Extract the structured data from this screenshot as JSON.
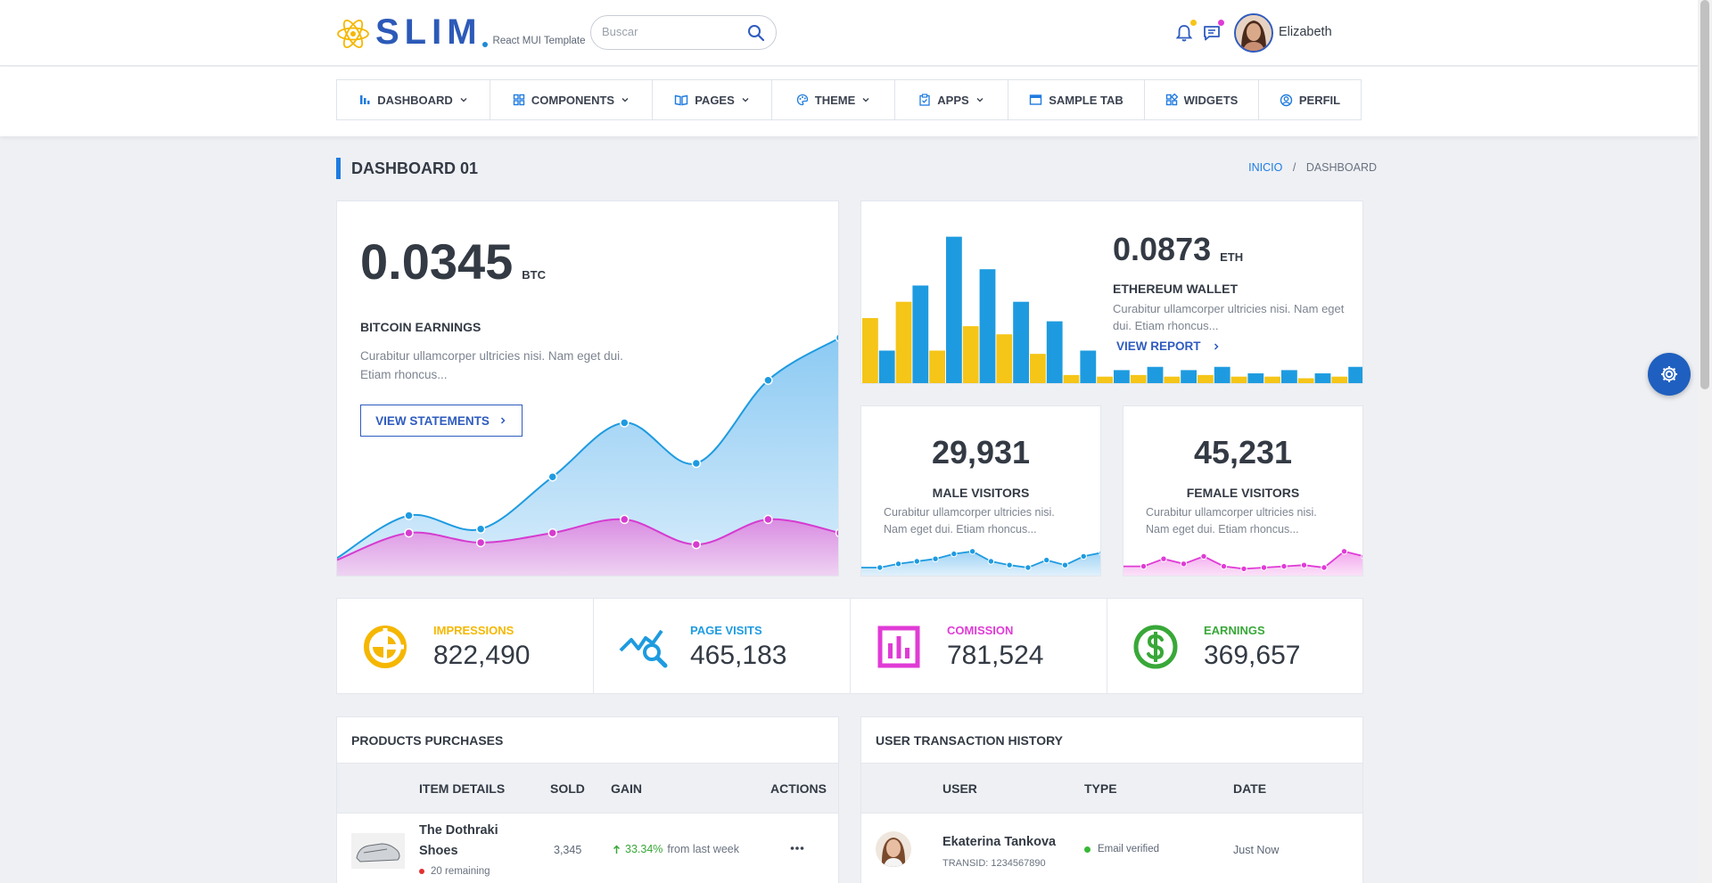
{
  "header": {
    "logo_text": "SLIM",
    "logo_subtitle": "React MUI Template",
    "search": {
      "placeholder": "Buscar"
    },
    "user_name": "Elizabeth",
    "colors": {
      "notif_dot": "#f5c518",
      "msg_dot": "#e03bd6"
    }
  },
  "nav": {
    "items": [
      {
        "label": "DASHBOARD",
        "icon": "bar-chart-icon",
        "dropdown": true
      },
      {
        "label": "COMPONENTS",
        "icon": "grid-icon",
        "dropdown": true
      },
      {
        "label": "PAGES",
        "icon": "book-icon",
        "dropdown": true
      },
      {
        "label": "THEME",
        "icon": "palette-icon",
        "dropdown": true
      },
      {
        "label": "APPS",
        "icon": "clipboard-icon",
        "dropdown": true
      },
      {
        "label": "SAMPLE TAB",
        "icon": "browser-icon",
        "dropdown": false
      },
      {
        "label": "WIDGETS",
        "icon": "widgets-icon",
        "dropdown": false
      },
      {
        "label": "PERFIL",
        "icon": "user-circle-icon",
        "dropdown": false
      }
    ]
  },
  "page": {
    "title": "DASHBOARD 01",
    "breadcrumb": {
      "home": "INICIO",
      "separator": "/",
      "current": "DASHBOARD"
    }
  },
  "bitcoin": {
    "value": "0.0345",
    "unit": "BTC",
    "title": "BITCOIN EARNINGS",
    "desc_line1": "Curabitur ullamcorper ultricies nisi. Nam eget dui.",
    "desc_line2": "Etiam rhoncus...",
    "button": "VIEW STATEMENTS"
  },
  "ethereum": {
    "value": "0.0873",
    "unit": "ETH",
    "title": "ETHEREUM WALLET",
    "desc_line1": "Curabitur ullamcorper ultricies nisi. Nam eget",
    "desc_line2": "dui. Etiam rhoncus...",
    "link": "VIEW REPORT"
  },
  "male": {
    "value": "29,931",
    "title": "MALE VISITORS",
    "desc_line1": "Curabitur ullamcorper ultricies nisi.",
    "desc_line2": "Nam eget dui. Etiam rhoncus..."
  },
  "female": {
    "value": "45,231",
    "title": "FEMALE VISITORS",
    "desc_line1": "Curabitur ullamcorper ultricies nisi.",
    "desc_line2": "Nam eget dui. Etiam rhoncus..."
  },
  "stats": [
    {
      "label": "IMPRESSIONS",
      "value": "822,490",
      "color": "#f5b700",
      "icon": "pie-chart-icon"
    },
    {
      "label": "PAGE VISITS",
      "value": "465,183",
      "color": "#1e9be0",
      "icon": "chart-search-icon"
    },
    {
      "label": "COMISSION",
      "value": "781,524",
      "color": "#e03bd6",
      "icon": "bar-report-icon"
    },
    {
      "label": "EARNINGS",
      "value": "369,657",
      "color": "#38a838",
      "icon": "dollar-circle-icon"
    }
  ],
  "products": {
    "title": "PRODUCTS PURCHASES",
    "columns": [
      "ITEM DETAILS",
      "SOLD",
      "GAIN",
      "ACTIONS"
    ],
    "rows": [
      {
        "name_line1": "The Dothraki",
        "name_line2": "Shoes",
        "remaining": "20 remaining",
        "sold": "3,345",
        "gain_pct": "33.34%",
        "gain_text": "from last week"
      }
    ]
  },
  "transactions": {
    "title": "USER TRANSACTION HISTORY",
    "columns": [
      "USER",
      "TYPE",
      "DATE"
    ],
    "rows": [
      {
        "name": "Ekaterina Tankova",
        "transid": "TRANSID: 1234567890",
        "type": "Email verified",
        "date": "Just Now"
      }
    ]
  },
  "chart_data": [
    {
      "type": "area",
      "series": [
        {
          "values": [
            10,
            32,
            25,
            52,
            80,
            59,
            102,
            124
          ],
          "color": "#1e9be0"
        },
        {
          "values": [
            9,
            23,
            18,
            23,
            30,
            17,
            30,
            23
          ],
          "color": "#d63bd0"
        }
      ],
      "ylim": [
        0,
        130
      ]
    },
    {
      "type": "bar",
      "series": [
        {
          "values": [
            40,
            50,
            20,
            35,
            30,
            18,
            5,
            4,
            5,
            4,
            5,
            4,
            4,
            3,
            4
          ],
          "color": "#f5c518"
        },
        {
          "values": [
            20,
            60,
            90,
            70,
            50,
            38,
            20,
            8,
            10,
            8,
            10,
            6,
            8,
            6,
            10
          ],
          "color": "#1e9be0"
        }
      ],
      "ylim": [
        0,
        92
      ]
    },
    {
      "type": "line",
      "series": [
        {
          "values": [
            5,
            5,
            8,
            10,
            12,
            16,
            18,
            10,
            7,
            5,
            11,
            7,
            14,
            17
          ],
          "color": "#1e9be0"
        }
      ],
      "ylim": [
        0,
        30
      ]
    },
    {
      "type": "line",
      "series": [
        {
          "values": [
            6,
            6,
            12,
            8,
            14,
            6,
            4,
            5,
            6,
            7,
            5,
            18,
            14
          ],
          "color": "#e03bd6"
        }
      ],
      "ylim": [
        0,
        30
      ]
    }
  ]
}
